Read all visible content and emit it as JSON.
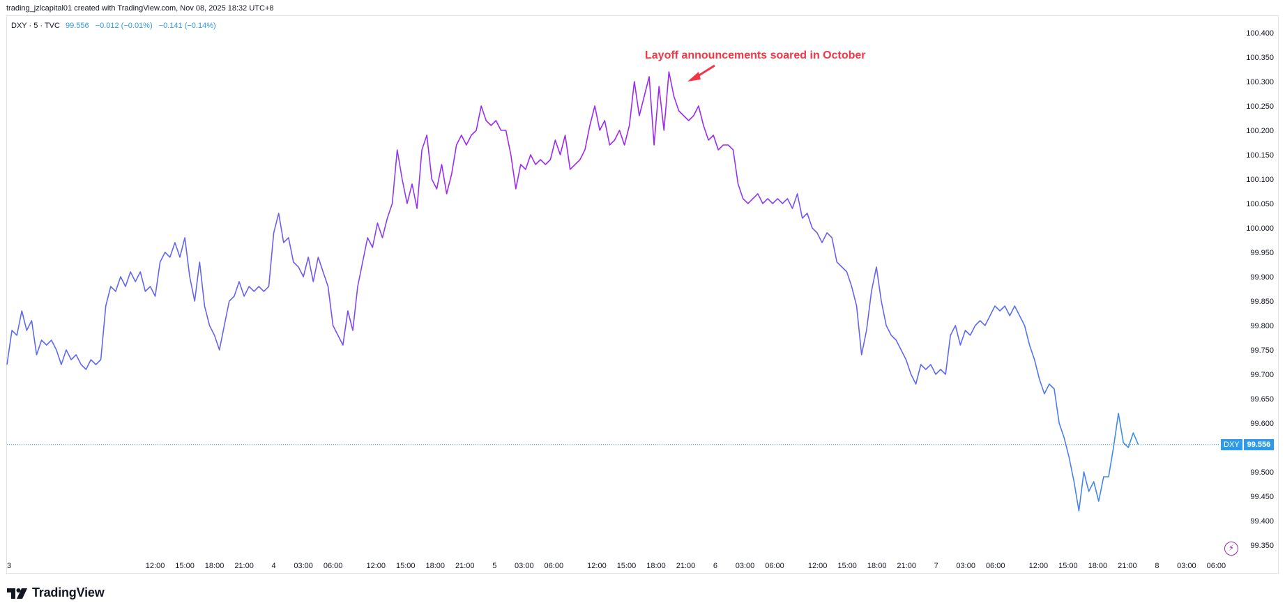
{
  "header": {
    "attribution": "trading_jzlcapital01 created with TradingView.com, Nov 08, 2025 18:32 UTC+8"
  },
  "legend": {
    "symbol": "DXY · 5 · TVC",
    "last": "99.556",
    "change": "−0.012 (−0.01%)",
    "change_day": "−0.141 (−0.14%)"
  },
  "price_tag": {
    "symbol": "DXY",
    "value": "99.556"
  },
  "annotation": {
    "text": "Layoff announcements soared in October"
  },
  "footer": {
    "brand": "TradingView"
  },
  "colors": {
    "line_start": "#5b6cf0",
    "line_mid": "#9c2bf0",
    "line_end": "#2f9ae8",
    "annotation": "#f23645",
    "last_price": "#2f9ae8"
  },
  "icons": [
    "tradingview-logo-icon",
    "lightning-icon",
    "annotation-arrow-icon"
  ],
  "chart_data": {
    "type": "line",
    "title": "",
    "symbol": "DXY",
    "timeframe": "5",
    "source": "TVC",
    "y_ticks": [
      "100.400",
      "100.350",
      "100.300",
      "100.250",
      "100.200",
      "100.150",
      "100.100",
      "100.050",
      "100.000",
      "99.950",
      "99.900",
      "99.850",
      "99.800",
      "99.750",
      "99.700",
      "99.650",
      "99.600",
      "99.550",
      "99.500",
      "99.450",
      "99.400",
      "99.350"
    ],
    "ylim": [
      99.34,
      100.42
    ],
    "x_ticks": [
      {
        "label": "3",
        "x": 0
      },
      {
        "label": "12:00",
        "x": 15
      },
      {
        "label": "15:00",
        "x": 18
      },
      {
        "label": "18:00",
        "x": 21
      },
      {
        "label": "21:00",
        "x": 24
      },
      {
        "label": "4",
        "x": 27
      },
      {
        "label": "03:00",
        "x": 30
      },
      {
        "label": "06:00",
        "x": 33
      },
      {
        "label": "12:00",
        "x": 37.35
      },
      {
        "label": "15:00",
        "x": 40.35
      },
      {
        "label": "18:00",
        "x": 43.35
      },
      {
        "label": "21:00",
        "x": 46.35
      },
      {
        "label": "5",
        "x": 49.35
      },
      {
        "label": "03:00",
        "x": 52.35
      },
      {
        "label": "06:00",
        "x": 55.35
      },
      {
        "label": "12:00",
        "x": 59.7
      },
      {
        "label": "15:00",
        "x": 62.7
      },
      {
        "label": "18:00",
        "x": 65.7
      },
      {
        "label": "21:00",
        "x": 68.7
      },
      {
        "label": "6",
        "x": 71.7
      },
      {
        "label": "03:00",
        "x": 74.7
      },
      {
        "label": "06:00",
        "x": 77.7
      },
      {
        "label": "12:00",
        "x": 82.05
      },
      {
        "label": "15:00",
        "x": 85.05
      },
      {
        "label": "18:00",
        "x": 88.05
      },
      {
        "label": "21:00",
        "x": 91.05
      },
      {
        "label": "7",
        "x": 94.05
      },
      {
        "label": "03:00",
        "x": 97.05
      },
      {
        "label": "06:00",
        "x": 100.05
      },
      {
        "label": "12:00",
        "x": 104.4
      },
      {
        "label": "15:00",
        "x": 107.4
      },
      {
        "label": "18:00",
        "x": 110.4
      },
      {
        "label": "21:00",
        "x": 113.4
      },
      {
        "label": "8",
        "x": 116.4
      },
      {
        "label": "03:00",
        "x": 119.4
      },
      {
        "label": "06:00",
        "x": 122.4
      }
    ],
    "x_unit": "hours (session-compressed time axis)",
    "last_value": 99.556,
    "series": [
      {
        "name": "DXY",
        "points": [
          [
            0,
            99.72
          ],
          [
            0.5,
            99.79
          ],
          [
            1,
            99.78
          ],
          [
            1.5,
            99.83
          ],
          [
            2,
            99.79
          ],
          [
            2.5,
            99.81
          ],
          [
            3,
            99.74
          ],
          [
            3.5,
            99.77
          ],
          [
            4,
            99.76
          ],
          [
            4.5,
            99.77
          ],
          [
            5,
            99.75
          ],
          [
            5.5,
            99.72
          ],
          [
            6,
            99.75
          ],
          [
            6.5,
            99.73
          ],
          [
            7,
            99.74
          ],
          [
            7.5,
            99.72
          ],
          [
            8,
            99.71
          ],
          [
            8.5,
            99.73
          ],
          [
            9,
            99.72
          ],
          [
            9.5,
            99.73
          ],
          [
            10,
            99.84
          ],
          [
            10.5,
            99.88
          ],
          [
            11,
            99.87
          ],
          [
            11.5,
            99.9
          ],
          [
            12,
            99.88
          ],
          [
            12.5,
            99.91
          ],
          [
            13,
            99.89
          ],
          [
            13.5,
            99.91
          ],
          [
            14,
            99.87
          ],
          [
            14.5,
            99.88
          ],
          [
            15,
            99.86
          ],
          [
            15.5,
            99.93
          ],
          [
            16,
            99.95
          ],
          [
            16.5,
            99.94
          ],
          [
            17,
            99.97
          ],
          [
            17.5,
            99.94
          ],
          [
            18,
            99.98
          ],
          [
            18.5,
            99.9
          ],
          [
            19,
            99.85
          ],
          [
            19.5,
            99.93
          ],
          [
            20,
            99.84
          ],
          [
            20.5,
            99.8
          ],
          [
            21,
            99.78
          ],
          [
            21.5,
            99.75
          ],
          [
            22,
            99.8
          ],
          [
            22.5,
            99.85
          ],
          [
            23,
            99.86
          ],
          [
            23.5,
            99.89
          ],
          [
            24,
            99.86
          ],
          [
            24.5,
            99.88
          ],
          [
            25,
            99.87
          ],
          [
            25.5,
            99.88
          ],
          [
            26,
            99.87
          ],
          [
            26.5,
            99.88
          ],
          [
            27,
            99.99
          ],
          [
            27.5,
            100.03
          ],
          [
            28,
            99.97
          ],
          [
            28.5,
            99.98
          ],
          [
            29,
            99.93
          ],
          [
            29.5,
            99.92
          ],
          [
            30,
            99.9
          ],
          [
            30.5,
            99.94
          ],
          [
            31,
            99.89
          ],
          [
            31.5,
            99.94
          ],
          [
            32,
            99.91
          ],
          [
            32.5,
            99.88
          ],
          [
            33,
            99.8
          ],
          [
            33.5,
            99.78
          ],
          [
            34,
            99.76
          ],
          [
            34.5,
            99.83
          ],
          [
            35,
            99.79
          ],
          [
            35.5,
            99.88
          ],
          [
            36,
            99.93
          ],
          [
            36.5,
            99.98
          ],
          [
            37,
            99.96
          ],
          [
            37.5,
            100.01
          ],
          [
            38,
            99.98
          ],
          [
            38.5,
            100.02
          ],
          [
            39,
            100.05
          ],
          [
            39.5,
            100.16
          ],
          [
            40,
            100.1
          ],
          [
            40.5,
            100.05
          ],
          [
            41,
            100.09
          ],
          [
            41.5,
            100.04
          ],
          [
            42,
            100.16
          ],
          [
            42.5,
            100.19
          ],
          [
            43,
            100.1
          ],
          [
            43.5,
            100.08
          ],
          [
            44,
            100.13
          ],
          [
            44.5,
            100.07
          ],
          [
            45,
            100.11
          ],
          [
            45.5,
            100.17
          ],
          [
            46,
            100.19
          ],
          [
            46.5,
            100.17
          ],
          [
            47,
            100.19
          ],
          [
            47.5,
            100.2
          ],
          [
            48,
            100.25
          ],
          [
            48.5,
            100.22
          ],
          [
            49,
            100.21
          ],
          [
            49.5,
            100.22
          ],
          [
            50,
            100.2
          ],
          [
            50.5,
            100.2
          ],
          [
            51,
            100.15
          ],
          [
            51.5,
            100.08
          ],
          [
            52,
            100.13
          ],
          [
            52.5,
            100.12
          ],
          [
            53,
            100.15
          ],
          [
            53.5,
            100.13
          ],
          [
            54,
            100.14
          ],
          [
            54.5,
            100.13
          ],
          [
            55,
            100.14
          ],
          [
            55.5,
            100.18
          ],
          [
            56,
            100.15
          ],
          [
            56.5,
            100.19
          ],
          [
            57,
            100.12
          ],
          [
            57.5,
            100.13
          ],
          [
            58,
            100.14
          ],
          [
            58.5,
            100.16
          ],
          [
            59,
            100.21
          ],
          [
            59.5,
            100.25
          ],
          [
            60,
            100.2
          ],
          [
            60.5,
            100.22
          ],
          [
            61,
            100.17
          ],
          [
            61.5,
            100.18
          ],
          [
            62,
            100.2
          ],
          [
            62.5,
            100.17
          ],
          [
            63,
            100.21
          ],
          [
            63.5,
            100.3
          ],
          [
            64,
            100.23
          ],
          [
            64.5,
            100.27
          ],
          [
            65,
            100.31
          ],
          [
            65.5,
            100.17
          ],
          [
            66,
            100.29
          ],
          [
            66.5,
            100.2
          ],
          [
            67,
            100.32
          ],
          [
            67.5,
            100.27
          ],
          [
            68,
            100.24
          ],
          [
            68.5,
            100.23
          ],
          [
            69,
            100.22
          ],
          [
            69.5,
            100.23
          ],
          [
            70,
            100.25
          ],
          [
            70.5,
            100.21
          ],
          [
            71,
            100.18
          ],
          [
            71.5,
            100.19
          ],
          [
            72,
            100.16
          ],
          [
            72.5,
            100.17
          ],
          [
            73,
            100.17
          ],
          [
            73.5,
            100.16
          ],
          [
            74,
            100.09
          ],
          [
            74.5,
            100.06
          ],
          [
            75,
            100.05
          ],
          [
            75.5,
            100.06
          ],
          [
            76,
            100.07
          ],
          [
            76.5,
            100.05
          ],
          [
            77,
            100.06
          ],
          [
            77.5,
            100.05
          ],
          [
            78,
            100.06
          ],
          [
            78.5,
            100.05
          ],
          [
            79,
            100.06
          ],
          [
            79.5,
            100.04
          ],
          [
            80,
            100.07
          ],
          [
            80.5,
            100.02
          ],
          [
            81,
            100.03
          ],
          [
            81.5,
            100.0
          ],
          [
            82,
            99.99
          ],
          [
            82.5,
            99.97
          ],
          [
            83,
            99.99
          ],
          [
            83.5,
            99.98
          ],
          [
            84,
            99.93
          ],
          [
            84.5,
            99.92
          ],
          [
            85,
            99.91
          ],
          [
            85.5,
            99.88
          ],
          [
            86,
            99.84
          ],
          [
            86.5,
            99.74
          ],
          [
            87,
            99.79
          ],
          [
            87.5,
            99.87
          ],
          [
            88,
            99.92
          ],
          [
            88.5,
            99.85
          ],
          [
            89,
            99.8
          ],
          [
            89.5,
            99.78
          ],
          [
            90,
            99.77
          ],
          [
            90.5,
            99.75
          ],
          [
            91,
            99.73
          ],
          [
            91.5,
            99.7
          ],
          [
            92,
            99.68
          ],
          [
            92.5,
            99.72
          ],
          [
            93,
            99.71
          ],
          [
            93.5,
            99.72
          ],
          [
            94,
            99.7
          ],
          [
            94.5,
            99.71
          ],
          [
            95,
            99.7
          ],
          [
            95.5,
            99.78
          ],
          [
            96,
            99.8
          ],
          [
            96.5,
            99.76
          ],
          [
            97,
            99.79
          ],
          [
            97.5,
            99.78
          ],
          [
            98,
            99.8
          ],
          [
            98.5,
            99.81
          ],
          [
            99,
            99.8
          ],
          [
            99.5,
            99.82
          ],
          [
            100,
            99.84
          ],
          [
            100.5,
            99.83
          ],
          [
            101,
            99.84
          ],
          [
            101.5,
            99.82
          ],
          [
            102,
            99.84
          ],
          [
            102.5,
            99.82
          ],
          [
            103,
            99.8
          ],
          [
            103.5,
            99.76
          ],
          [
            104,
            99.73
          ],
          [
            104.5,
            99.69
          ],
          [
            105,
            99.66
          ],
          [
            105.5,
            99.68
          ],
          [
            106,
            99.67
          ],
          [
            106.5,
            99.6
          ],
          [
            107,
            99.57
          ],
          [
            107.5,
            99.53
          ],
          [
            108,
            99.48
          ],
          [
            108.5,
            99.42
          ],
          [
            109,
            99.5
          ],
          [
            109.5,
            99.46
          ],
          [
            110,
            99.48
          ],
          [
            110.5,
            99.44
          ],
          [
            111,
            99.49
          ],
          [
            111.5,
            99.49
          ],
          [
            112,
            99.55
          ],
          [
            112.5,
            99.62
          ],
          [
            113,
            99.56
          ],
          [
            113.5,
            99.55
          ],
          [
            114,
            99.58
          ],
          [
            114.5,
            99.556
          ]
        ]
      }
    ]
  }
}
